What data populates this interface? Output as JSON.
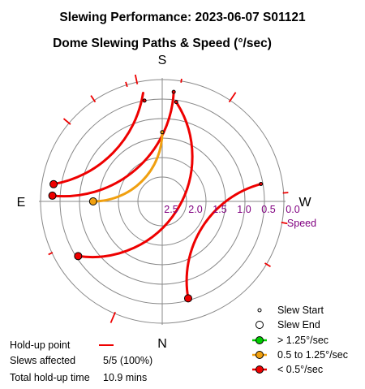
{
  "header": {
    "title": "Slewing Performance: 2023-06-07 S01121",
    "subtitle": "Dome Slewing Paths & Speed (°/sec)"
  },
  "directions": {
    "top": "S",
    "bottom": "N",
    "left": "E",
    "right": "W"
  },
  "speed_axis": {
    "ticks": [
      "2.5",
      "2.0",
      "1.5",
      "1.0",
      "0.5",
      "0.0"
    ],
    "label": "Speed"
  },
  "legend": {
    "slew_start": "Slew Start",
    "slew_end": "Slew End",
    "fast": "> 1.25°/sec",
    "medium": "0.5 to 1.25°/sec",
    "slow": "< 0.5°/sec"
  },
  "colors": {
    "fast": "#00cc00",
    "medium": "#f0a010",
    "slow": "#ee0000",
    "grid": "#888888"
  },
  "stats": {
    "holdup_label": "Hold-up point",
    "slews_label": "Slews affected",
    "slews_value": "5/5 (100%)",
    "time_label": "Total hold-up time",
    "time_value": "10.9 mins"
  },
  "chart_data": {
    "type": "polar",
    "radial_axis": {
      "quantity": "speed",
      "unit": "°/sec",
      "outer": 0.0,
      "inner": 2.5,
      "ticks": [
        2.5,
        2.0,
        1.5,
        1.0,
        0.5,
        0.0
      ]
    },
    "angular_axis": {
      "quantity": "dome azimuth",
      "top": "S",
      "right": "W",
      "bottom": "N",
      "left": "E"
    },
    "slews": [
      {
        "speed_class": "slow",
        "start_az": 170,
        "end_az": 99,
        "path_speed": 0.3,
        "start_dot_az": 170,
        "start_dot_speed": 0.5
      },
      {
        "speed_class": "slow",
        "start_az": 186,
        "end_az": 93,
        "path_speed": 0.3
      },
      {
        "speed_class": "slow",
        "start_az": 188,
        "end_az": 57,
        "path_speed": 0.55
      },
      {
        "speed_class": "slow",
        "start_az": 260,
        "end_az": 345,
        "path_speed": 0.55
      },
      {
        "speed_class": "medium",
        "start_az": 180,
        "end_az": 90,
        "path_speed": 1.35
      }
    ],
    "holdup_ticks": [
      {
        "az": 130,
        "r0": 0.05,
        "r1": -0.18
      },
      {
        "az": 146,
        "r0": 0.05,
        "r1": -0.15
      },
      {
        "az": 168,
        "r0": 0.05,
        "r1": -0.2
      },
      {
        "az": 163,
        "r0": 0.05,
        "r1": -0.08
      },
      {
        "az": 189,
        "r0": 0.04,
        "r1": -0.06
      },
      {
        "az": 214,
        "r0": 0.05,
        "r1": -0.25
      },
      {
        "az": 266,
        "r0": 0.02,
        "r1": -0.12
      },
      {
        "az": 280,
        "r0": 0.02,
        "r1": -0.14
      },
      {
        "az": 301,
        "r0": 0.05,
        "r1": -0.12
      },
      {
        "az": 65,
        "r0": 0.02,
        "r1": -0.1
      },
      {
        "az": 23,
        "r0": 0.04,
        "r1": -0.26
      }
    ]
  }
}
